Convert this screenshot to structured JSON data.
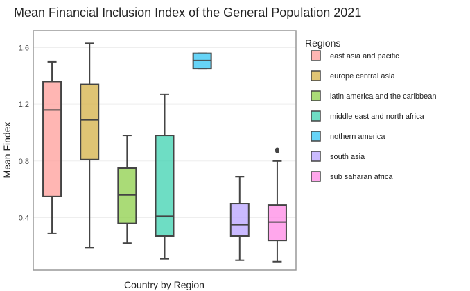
{
  "chart_data": {
    "type": "box",
    "title": "Mean Financial Inclusion Index of the General Population 2021",
    "xlabel": "Country by Region",
    "ylabel": "Mean Findex",
    "ylim": [
      0.03,
      1.72
    ],
    "yticks": [
      0.4,
      0.8,
      1.2,
      1.6
    ],
    "ytick_labels": [
      "0.4",
      "0.8",
      "1.2",
      "1.6"
    ],
    "grid": true,
    "legend": {
      "title": "Regions",
      "position": "right"
    },
    "series": [
      {
        "name": "east asia and pacific",
        "color": "#ff9e99",
        "min": 0.29,
        "q1": 0.55,
        "median": 1.16,
        "q3": 1.36,
        "max": 1.5,
        "outliers": []
      },
      {
        "name": "europe central asia",
        "color": "#d4b046",
        "min": 0.19,
        "q1": 0.81,
        "median": 1.09,
        "q3": 1.34,
        "max": 1.63,
        "outliers": []
      },
      {
        "name": "latin america and the caribbean",
        "color": "#8dcf4a",
        "min": 0.22,
        "q1": 0.36,
        "median": 0.56,
        "q3": 0.75,
        "max": 0.98,
        "outliers": []
      },
      {
        "name": "middle east and north africa",
        "color": "#3ed1b0",
        "min": 0.11,
        "q1": 0.27,
        "median": 0.41,
        "q3": 0.98,
        "max": 1.27,
        "outliers": []
      },
      {
        "name": "nothern america",
        "color": "#33c5f4",
        "min": 1.45,
        "q1": 1.45,
        "median": 1.51,
        "q3": 1.56,
        "max": 1.56,
        "outliers": []
      },
      {
        "name": "south asia",
        "color": "#b8a3ff",
        "min": 0.1,
        "q1": 0.27,
        "median": 0.35,
        "q3": 0.5,
        "max": 0.69,
        "outliers": []
      },
      {
        "name": "sub saharan africa",
        "color": "#ff8ae6",
        "min": 0.09,
        "q1": 0.24,
        "median": 0.37,
        "q3": 0.49,
        "max": 0.8,
        "outliers": [
          0.87,
          0.88
        ]
      }
    ]
  }
}
